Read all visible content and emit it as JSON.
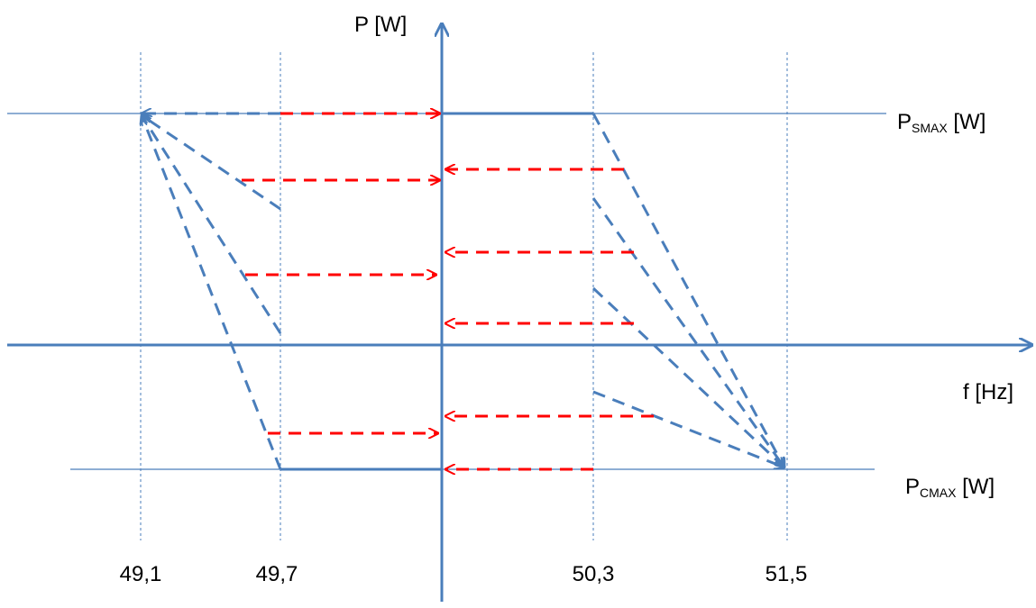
{
  "axes": {
    "y_label": "P [W]",
    "x_label": "f [Hz]"
  },
  "levels": {
    "pmax_supply": {
      "main": "P",
      "sub": "SMAX",
      "unit": " [W]"
    },
    "pmax_consume": {
      "main": "P",
      "sub": "CMAX",
      "unit": " [W]"
    }
  },
  "frequency_ticks": [
    "49,1",
    "49,7",
    "50,3",
    "51,5"
  ],
  "colors": {
    "axis": "#4a7ebb",
    "dashed_blue": "#4a7ebb",
    "dashed_red": "#ff0000",
    "text": "#000000"
  }
}
